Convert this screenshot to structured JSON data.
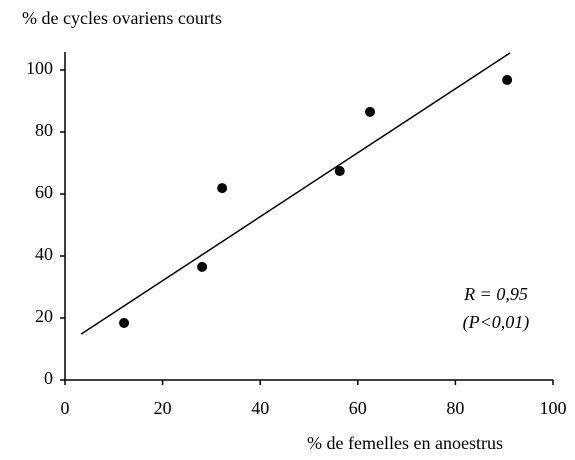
{
  "chart_data": {
    "type": "scatter",
    "y_label": "% de cycles ovariens courts",
    "x_label": "% de femelles en anoestrus",
    "x": [
      12.1,
      28.1,
      32.2,
      56.3,
      62.5,
      90.6
    ],
    "values": [
      18.4,
      36.5,
      61.9,
      67.4,
      86.5,
      96.8
    ],
    "color": "#000000",
    "fit_line": {
      "x": [
        3.3,
        91.2
      ],
      "values": [
        14.8,
        105.5
      ]
    },
    "annotations": [
      "R = 0,95",
      "(P<0,01)"
    ],
    "xlim": [
      0,
      100
    ],
    "xticks": [
      0,
      20,
      40,
      60,
      80,
      100
    ],
    "ylim": [
      0,
      100
    ],
    "yticks": [
      0,
      20,
      40,
      60,
      80,
      100
    ]
  }
}
